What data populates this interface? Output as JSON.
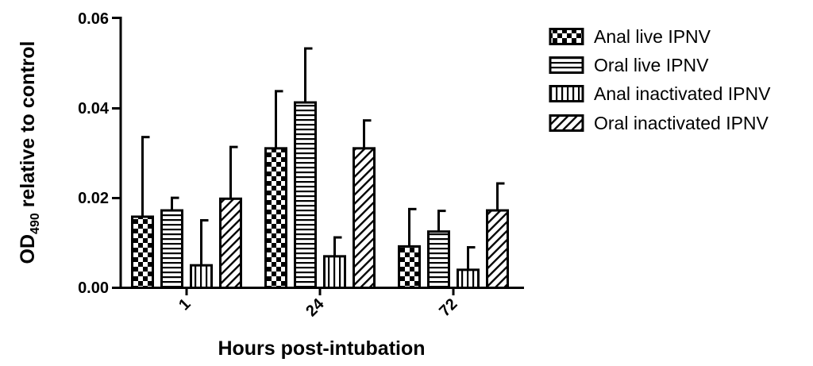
{
  "chart_data": {
    "type": "bar",
    "categories": [
      "1",
      "24",
      "72"
    ],
    "series": [
      {
        "name": "Anal live IPNV",
        "pattern": "checker",
        "values": [
          0.0158,
          0.031,
          0.0092
        ],
        "errors": [
          0.0177,
          0.0127,
          0.0083
        ]
      },
      {
        "name": "Oral live IPNV",
        "pattern": "horizontal",
        "values": [
          0.0172,
          0.0412,
          0.0125
        ],
        "errors": [
          0.0028,
          0.012,
          0.0046
        ]
      },
      {
        "name": "Anal inactivated IPNV",
        "pattern": "vertical",
        "values": [
          0.005,
          0.007,
          0.004
        ],
        "errors": [
          0.01,
          0.0042,
          0.005
        ]
      },
      {
        "name": "Oral inactivated IPNV",
        "pattern": "diagonal",
        "values": [
          0.0198,
          0.031,
          0.0172
        ],
        "errors": [
          0.0115,
          0.0062,
          0.006
        ]
      }
    ],
    "ylabel_main": "OD",
    "ylabel_sub": "490",
    "ylabel_rest": " relative to control",
    "xlabel": "Hours post-intubation",
    "ylim": [
      0,
      0.06
    ],
    "yticks": [
      "0.00",
      "0.02",
      "0.04",
      "0.06"
    ],
    "grid": false,
    "legend_position": "right"
  }
}
